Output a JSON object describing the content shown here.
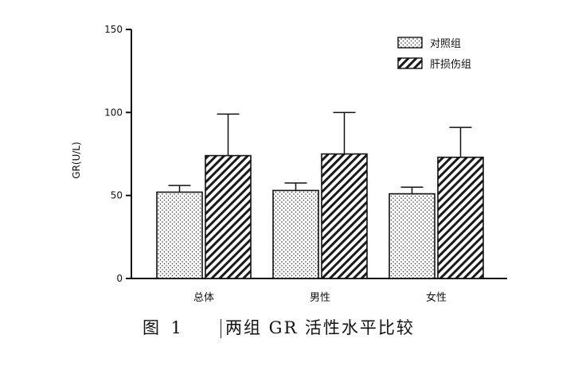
{
  "chart_data": {
    "type": "bar",
    "ylabel": "GR(U/L)",
    "xlabel": "",
    "ylim": [
      0,
      150
    ],
    "yticks": [
      0,
      50,
      100,
      150
    ],
    "categories": [
      "总体",
      "男性",
      "女性"
    ],
    "series": [
      {
        "name": "对照组",
        "pattern": "dots",
        "values": [
          52,
          53,
          51
        ],
        "error": [
          4,
          4.5,
          4
        ]
      },
      {
        "name": "肝损伤组",
        "pattern": "diagonal-hatch",
        "values": [
          74,
          75,
          73
        ],
        "error": [
          25,
          25,
          18
        ]
      }
    ],
    "legend_position": "top-right",
    "grid": false
  },
  "caption": {
    "label": "图 1",
    "title": "两组 GR 活性水平比较"
  },
  "colors": {
    "ink": "#111111",
    "background": "#ffffff"
  }
}
